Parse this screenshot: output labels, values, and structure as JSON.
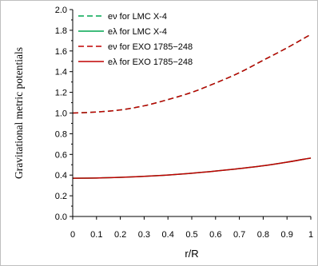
{
  "chart_data": {
    "type": "line",
    "xlabel": "r/R",
    "ylabel": "Gravitational metric potentials",
    "xlim": [
      0,
      1
    ],
    "ylim": [
      0,
      2
    ],
    "x_ticks": [
      0,
      0.1,
      0.2,
      0.3,
      0.4,
      0.5,
      0.6,
      0.7,
      0.8,
      0.9,
      1
    ],
    "x_tick_labels": [
      "0",
      "0.1",
      "0.2",
      "0.3",
      "0.4",
      "0.5",
      "0.6",
      "0.7",
      "0.8",
      "0.9",
      "1"
    ],
    "y_ticks": [
      0,
      0.2,
      0.4,
      0.6,
      0.8,
      1.0,
      1.2,
      1.4,
      1.6,
      1.8,
      2.0
    ],
    "y_tick_labels": [
      "0.0",
      "0.2",
      "0.4",
      "0.6",
      "0.8",
      "1.0",
      "1.2",
      "1.4",
      "1.6",
      "1.8",
      "2.0"
    ],
    "grid": false,
    "legend_position": "top-left",
    "x": [
      0,
      0.1,
      0.2,
      0.3,
      0.4,
      0.5,
      0.6,
      0.7,
      0.8,
      0.9,
      1.0
    ],
    "series": [
      {
        "name": "eν for LMC X-4",
        "color": "#00a651",
        "dash": true,
        "values": [
          1.0,
          1.01,
          1.03,
          1.07,
          1.13,
          1.2,
          1.29,
          1.39,
          1.51,
          1.63,
          1.76
        ]
      },
      {
        "name": "eλ for LMC X-4",
        "color": "#00a651",
        "dash": false,
        "values": [
          0.37,
          0.372,
          0.378,
          0.388,
          0.401,
          0.418,
          0.439,
          0.463,
          0.49,
          0.525,
          0.565
        ]
      },
      {
        "name": "eν for EXO 1785−248",
        "color": "#c00000",
        "dash": true,
        "values": [
          1.0,
          1.01,
          1.03,
          1.07,
          1.13,
          1.2,
          1.29,
          1.39,
          1.51,
          1.63,
          1.76
        ]
      },
      {
        "name": "eλ for EXO 1785−248",
        "color": "#c00000",
        "dash": false,
        "values": [
          0.37,
          0.372,
          0.378,
          0.388,
          0.401,
          0.418,
          0.439,
          0.463,
          0.49,
          0.525,
          0.565
        ]
      }
    ]
  }
}
